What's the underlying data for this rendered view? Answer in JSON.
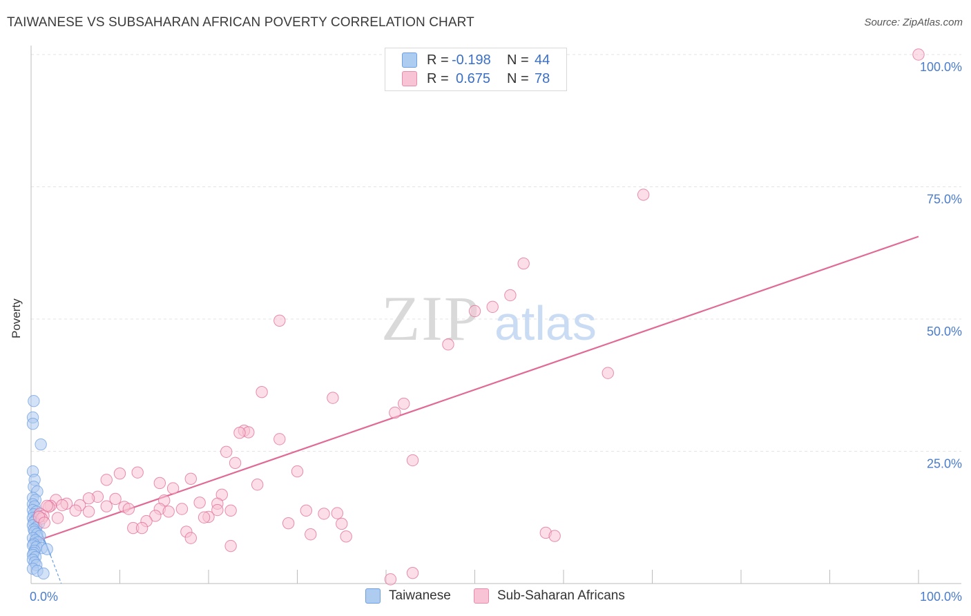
{
  "title": "TAIWANESE VS SUBSAHARAN AFRICAN POVERTY CORRELATION CHART",
  "source": "Source: ZipAtlas.com",
  "watermark": {
    "zip": "ZIP",
    "atlas": "atlas"
  },
  "legend": {
    "rows": [
      {
        "r_label": "R =",
        "r_value": "-0.198",
        "n_label": "N =",
        "n_value": "44",
        "color": "#aecbf0",
        "border": "#6d9fe0"
      },
      {
        "r_label": "R =",
        "r_value": "0.675",
        "n_label": "N =",
        "n_value": "78",
        "color": "#f8c3d4",
        "border": "#e88aa8"
      }
    ]
  },
  "bottom_legend": [
    {
      "label": "Taiwanese",
      "color": "#aecbf0",
      "border": "#6d9fe0"
    },
    {
      "label": "Sub-Saharan Africans",
      "color": "#f8c3d4",
      "border": "#e88aa8"
    }
  ],
  "chart_data": {
    "type": "scatter",
    "title": "TAIWANESE VS SUBSAHARAN AFRICAN POVERTY CORRELATION CHART",
    "xlabel": "",
    "ylabel": "Poverty",
    "xlim": [
      0,
      100
    ],
    "ylim": [
      0,
      100
    ],
    "x_tick_labels": [
      "0.0%",
      "100.0%"
    ],
    "y_tick_labels": [
      {
        "value": 25,
        "label": "25.0%"
      },
      {
        "value": 50,
        "label": "50.0%"
      },
      {
        "value": 75,
        "label": "75.0%"
      },
      {
        "value": 100,
        "label": "100.0%"
      }
    ],
    "grid": true,
    "series": [
      {
        "name": "Taiwanese",
        "color": "#6d9fe0",
        "fill": "#aecbf0",
        "trend": {
          "x": [
            0,
            2.2
          ],
          "y": [
            14.3,
            5.3
          ],
          "dashed_to": [
            3.4,
            0.0
          ]
        },
        "points": [
          [
            0.3,
            34.5
          ],
          [
            0.2,
            31.4
          ],
          [
            0.2,
            30.2
          ],
          [
            1.1,
            26.3
          ],
          [
            0.2,
            21.2
          ],
          [
            0.4,
            19.6
          ],
          [
            0.3,
            18.3
          ],
          [
            0.7,
            17.4
          ],
          [
            0.2,
            16.2
          ],
          [
            0.5,
            15.8
          ],
          [
            0.2,
            15.0
          ],
          [
            0.4,
            14.6
          ],
          [
            0.2,
            13.9
          ],
          [
            0.6,
            13.6
          ],
          [
            0.3,
            13.1
          ],
          [
            0.8,
            12.8
          ],
          [
            0.2,
            12.4
          ],
          [
            0.5,
            12.0
          ],
          [
            0.3,
            11.6
          ],
          [
            0.9,
            11.4
          ],
          [
            0.2,
            11.0
          ],
          [
            0.6,
            10.6
          ],
          [
            0.3,
            10.2
          ],
          [
            0.4,
            9.8
          ],
          [
            0.7,
            9.4
          ],
          [
            1.0,
            9.0
          ],
          [
            0.2,
            8.6
          ],
          [
            0.5,
            8.2
          ],
          [
            0.8,
            7.8
          ],
          [
            0.3,
            7.5
          ],
          [
            0.2,
            7.2
          ],
          [
            0.6,
            6.9
          ],
          [
            1.2,
            6.7
          ],
          [
            1.8,
            6.5
          ],
          [
            0.4,
            6.2
          ],
          [
            0.3,
            5.8
          ],
          [
            0.2,
            5.4
          ],
          [
            0.5,
            5.0
          ],
          [
            0.2,
            4.5
          ],
          [
            0.4,
            4.0
          ],
          [
            0.6,
            3.5
          ],
          [
            0.2,
            2.8
          ],
          [
            0.7,
            2.4
          ],
          [
            1.4,
            1.9
          ]
        ]
      },
      {
        "name": "Sub-Saharan Africans",
        "color": "#e06a95",
        "fill": "#f8c3d4",
        "trend": {
          "x": [
            0,
            100
          ],
          "y": [
            7.7,
            65.6
          ]
        },
        "points": [
          [
            100,
            100
          ],
          [
            69,
            73.5
          ],
          [
            55.5,
            60.5
          ],
          [
            54,
            54.5
          ],
          [
            52,
            52.3
          ],
          [
            50,
            51.5
          ],
          [
            28,
            49.7
          ],
          [
            47,
            45.2
          ],
          [
            65,
            39.8
          ],
          [
            26,
            36.2
          ],
          [
            34,
            35.1
          ],
          [
            42,
            34.0
          ],
          [
            41,
            32.3
          ],
          [
            24,
            28.9
          ],
          [
            24.5,
            28.6
          ],
          [
            23.5,
            28.5
          ],
          [
            28,
            27.3
          ],
          [
            22,
            24.9
          ],
          [
            43,
            23.3
          ],
          [
            23,
            22.8
          ],
          [
            30,
            21.2
          ],
          [
            10,
            20.8
          ],
          [
            12,
            21.0
          ],
          [
            8.5,
            19.6
          ],
          [
            18,
            19.8
          ],
          [
            14.5,
            19.0
          ],
          [
            25.5,
            18.7
          ],
          [
            16,
            18.0
          ],
          [
            21.5,
            16.8
          ],
          [
            7.5,
            16.4
          ],
          [
            6.5,
            16.1
          ],
          [
            9.5,
            16.0
          ],
          [
            15,
            15.7
          ],
          [
            2.8,
            15.8
          ],
          [
            19,
            15.3
          ],
          [
            21,
            15.1
          ],
          [
            4,
            15.1
          ],
          [
            5.5,
            14.8
          ],
          [
            2.2,
            14.7
          ],
          [
            3.5,
            14.8
          ],
          [
            2,
            14.5
          ],
          [
            1.8,
            14.7
          ],
          [
            8.5,
            14.6
          ],
          [
            10.5,
            14.5
          ],
          [
            11,
            14.1
          ],
          [
            14.5,
            14.1
          ],
          [
            17,
            14.1
          ],
          [
            22.5,
            13.8
          ],
          [
            5,
            13.8
          ],
          [
            21,
            13.9
          ],
          [
            31,
            13.8
          ],
          [
            6.5,
            13.6
          ],
          [
            15.5,
            13.6
          ],
          [
            1,
            13.2
          ],
          [
            1.4,
            12.8
          ],
          [
            1.2,
            12.3
          ],
          [
            14,
            12.8
          ],
          [
            20,
            12.6
          ],
          [
            0.9,
            12.6
          ],
          [
            33,
            13.2
          ],
          [
            34.5,
            13.3
          ],
          [
            19.5,
            12.5
          ],
          [
            13,
            11.8
          ],
          [
            29,
            11.4
          ],
          [
            35,
            11.3
          ],
          [
            11.5,
            10.5
          ],
          [
            12.5,
            10.5
          ],
          [
            17.5,
            9.8
          ],
          [
            31.5,
            9.3
          ],
          [
            58,
            9.6
          ],
          [
            59,
            9.0
          ],
          [
            35.5,
            8.9
          ],
          [
            18,
            8.6
          ],
          [
            22.5,
            7.1
          ],
          [
            43,
            2.0
          ],
          [
            40.5,
            0.8
          ],
          [
            1.5,
            11.5
          ],
          [
            3,
            12.4
          ]
        ]
      }
    ]
  }
}
